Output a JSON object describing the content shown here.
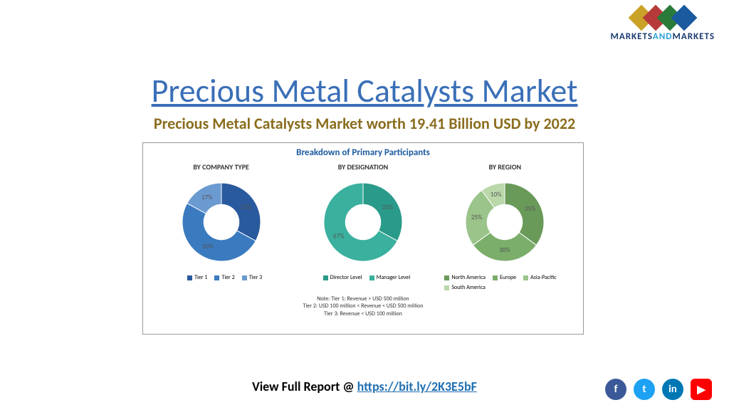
{
  "logo": {
    "text_parts": [
      "MARKETS",
      "AND",
      "MARKETS"
    ],
    "colors": {
      "part1": "#1a3a6e",
      "part2": "#2a9fd6",
      "part3": "#1a3a6e"
    },
    "diamonds": [
      "#c9a227",
      "#b73a3a",
      "#2a7a3a",
      "#1a5a9e"
    ]
  },
  "title": {
    "text": "Precious Metal Catalysts Market",
    "color": "#3a6fb7"
  },
  "subtitle": {
    "text": "Precious Metal Catalysts Market worth 19.41 Billion USD by 2022",
    "color": "#8a6d1e"
  },
  "chart": {
    "panel_title": "Breakdown of Primary Participants",
    "panel_title_color": "#1a5a9e",
    "columns": [
      {
        "header": "BY COMPANY TYPE",
        "slices": [
          {
            "label": "Tier 1",
            "value": 33,
            "color": "#2a5a9e"
          },
          {
            "label": "Tier 2",
            "value": 50,
            "color": "#3a7abf"
          },
          {
            "label": "Tier 3",
            "value": 17,
            "color": "#6a9ad0"
          }
        ]
      },
      {
        "header": "BY DESIGNATION",
        "slices": [
          {
            "label": "Director Level",
            "value": 33,
            "color": "#2a9a8a"
          },
          {
            "label": "Manager Level",
            "value": 67,
            "color": "#3ab09e"
          }
        ]
      },
      {
        "header": "BY REGION",
        "slices": [
          {
            "label": "North America",
            "value": 35,
            "color": "#6a9a5a"
          },
          {
            "label": "Europe",
            "value": 30,
            "color": "#7aae6a"
          },
          {
            "label": "Asia-Pacific",
            "value": 25,
            "color": "#9ac48a"
          },
          {
            "label": "South America",
            "value": 10,
            "color": "#bad8aa"
          }
        ]
      }
    ],
    "donut_inner_ratio": 0.45,
    "notes": [
      "Note: Tier 1: Revenue > USD 500 million",
      "Tier 2: USD 100 million < Revenue < USD 500 million",
      "Tier 3: Revenue < USD 100 million"
    ]
  },
  "footer": {
    "prefix": "View Full Report @ ",
    "link_text": "https://bit.ly/2K3E5bF",
    "link_color": "#1f6fb2"
  },
  "social": [
    {
      "name": "facebook",
      "bg": "#3b5998",
      "glyph": "f"
    },
    {
      "name": "twitter",
      "bg": "#1da1f2",
      "glyph": "t"
    },
    {
      "name": "linkedin",
      "bg": "#0077b5",
      "glyph": "in"
    },
    {
      "name": "youtube",
      "bg": "#ff0000",
      "glyph": "▶"
    }
  ]
}
